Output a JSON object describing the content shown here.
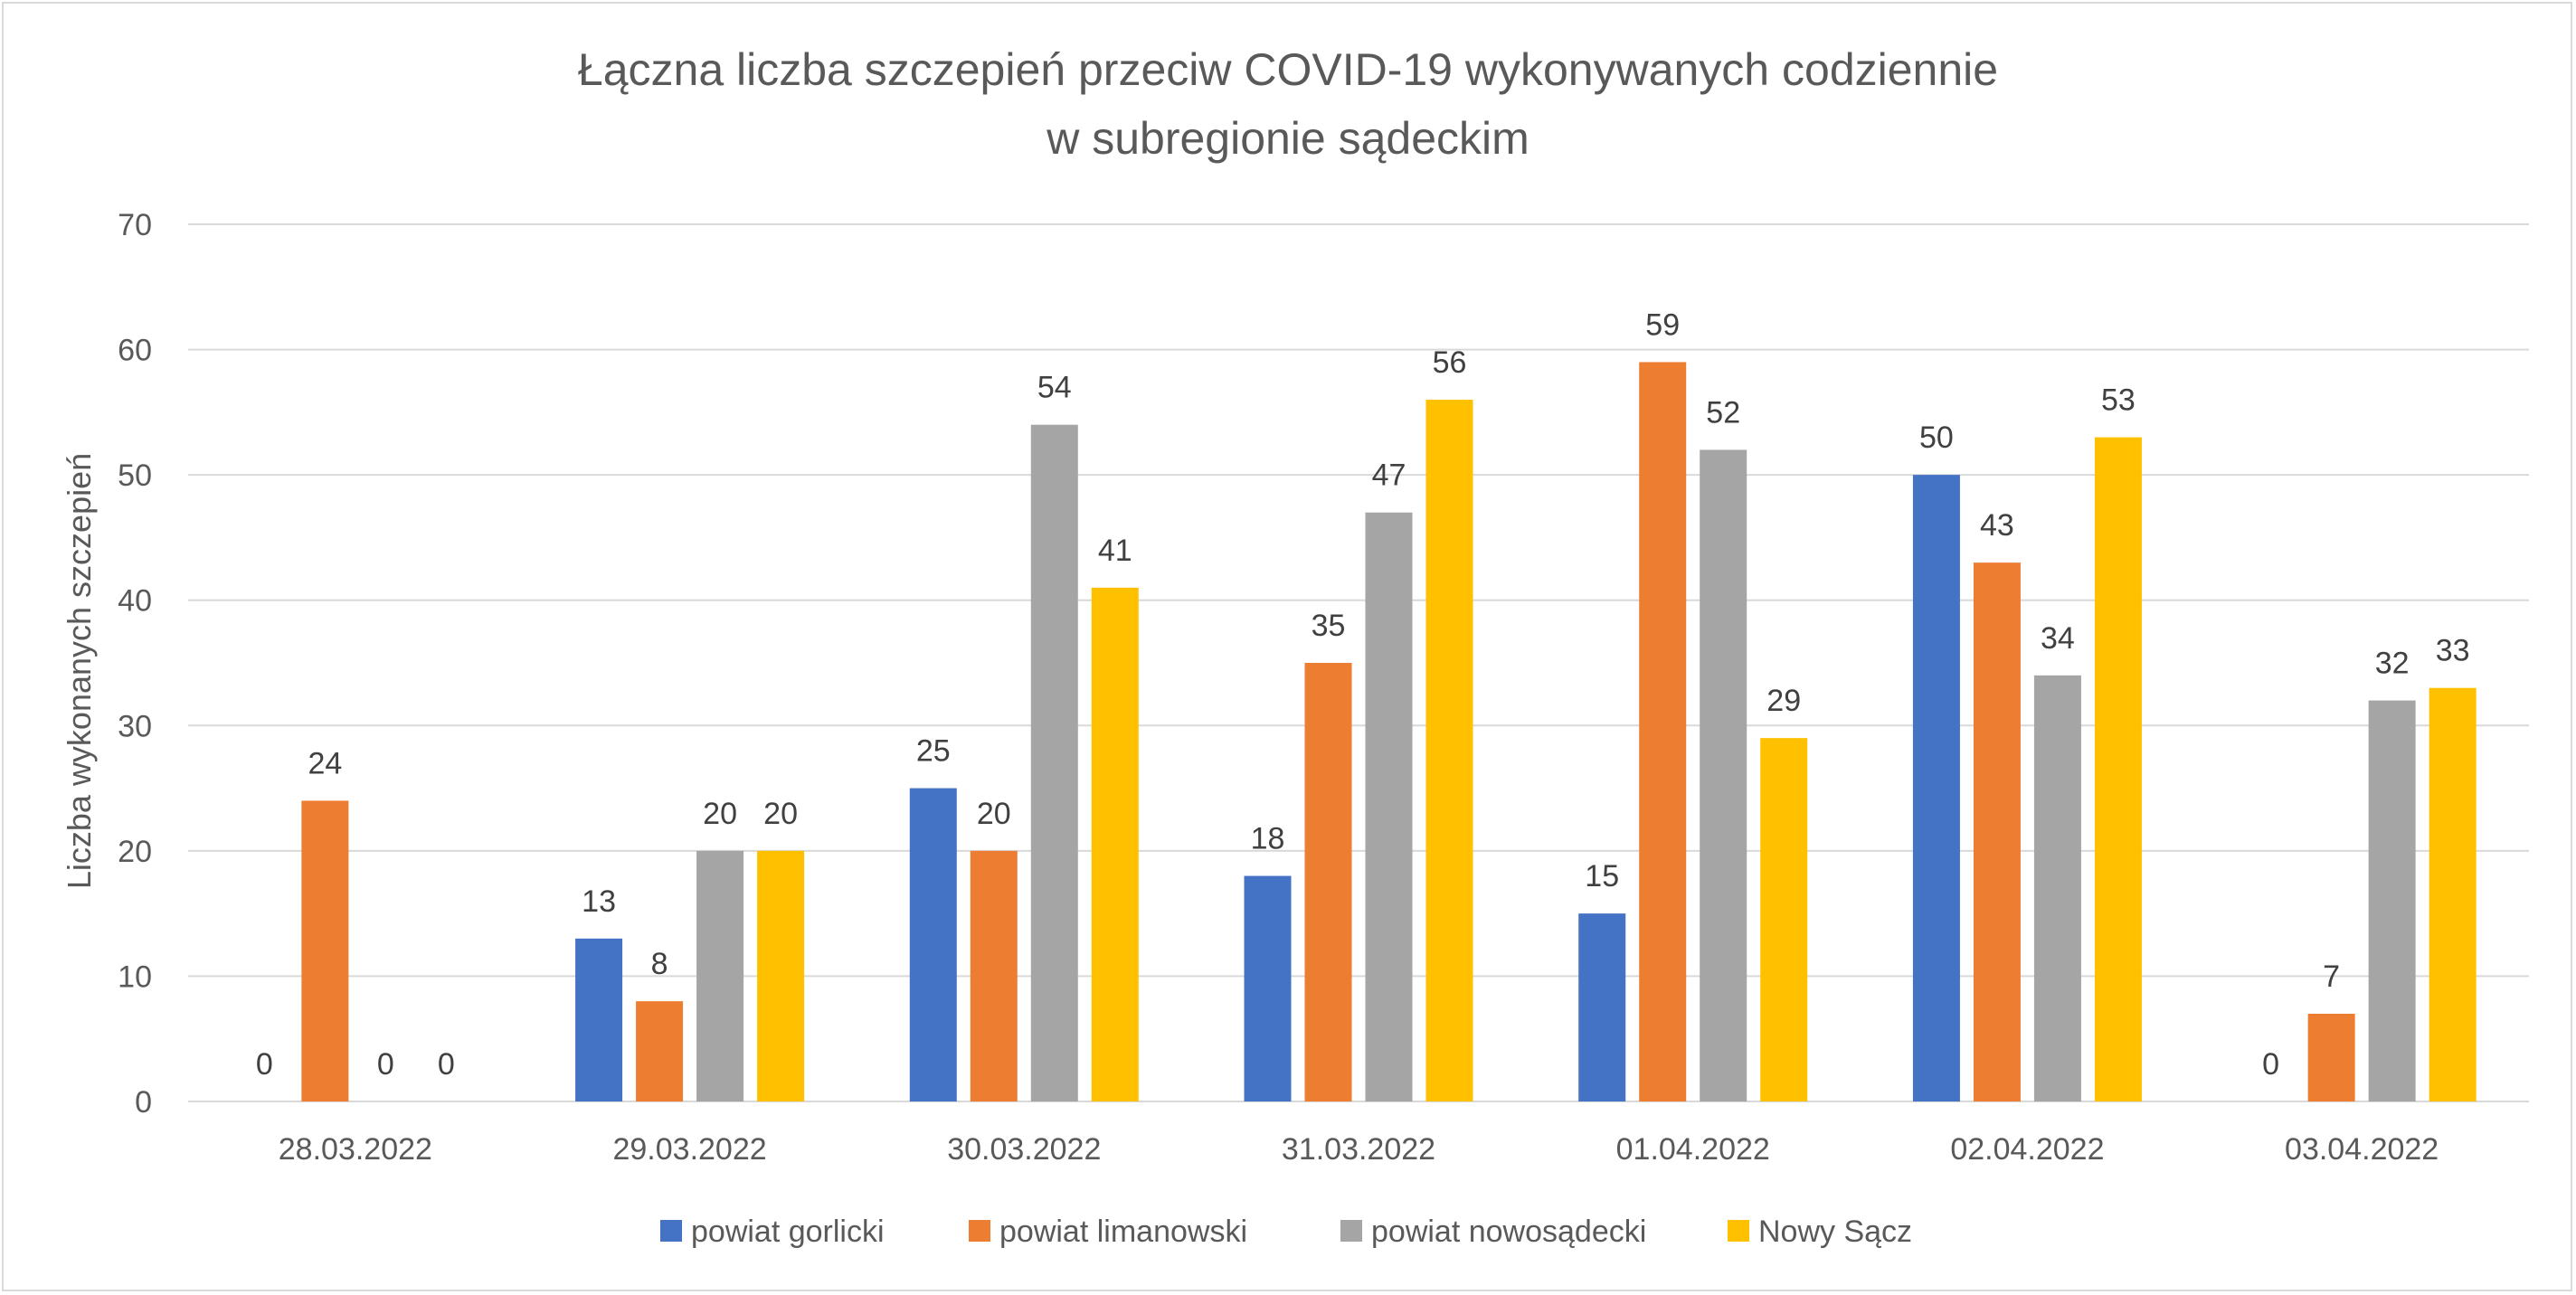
{
  "chart_data": {
    "type": "bar",
    "title": "Łączna liczba szczepień przeciw COVID-19 wykonywanych codziennie",
    "subtitle": "w subregionie sądeckim",
    "xlabel": "",
    "ylabel": "Liczba wykonanych szczepień",
    "ylim": [
      0,
      70
    ],
    "yticks": [
      0,
      10,
      20,
      30,
      40,
      50,
      60,
      70
    ],
    "grid": true,
    "legend_position": "bottom",
    "categories": [
      "28.03.2022",
      "29.03.2022",
      "30.03.2022",
      "31.03.2022",
      "01.04.2022",
      "02.04.2022",
      "03.04.2022"
    ],
    "series": [
      {
        "name": "powiat gorlicki",
        "color": "#4472C4",
        "values": [
          0,
          13,
          25,
          18,
          15,
          50,
          0
        ]
      },
      {
        "name": "powiat limanowski",
        "color": "#ED7D31",
        "values": [
          24,
          8,
          20,
          35,
          59,
          43,
          7
        ]
      },
      {
        "name": "powiat nowosądecki",
        "color": "#A5A5A5",
        "values": [
          0,
          20,
          54,
          47,
          52,
          34,
          32
        ]
      },
      {
        "name": "Nowy Sącz",
        "color": "#FFC000",
        "values": [
          0,
          20,
          41,
          56,
          29,
          53,
          33
        ]
      }
    ],
    "data_labels": true
  }
}
